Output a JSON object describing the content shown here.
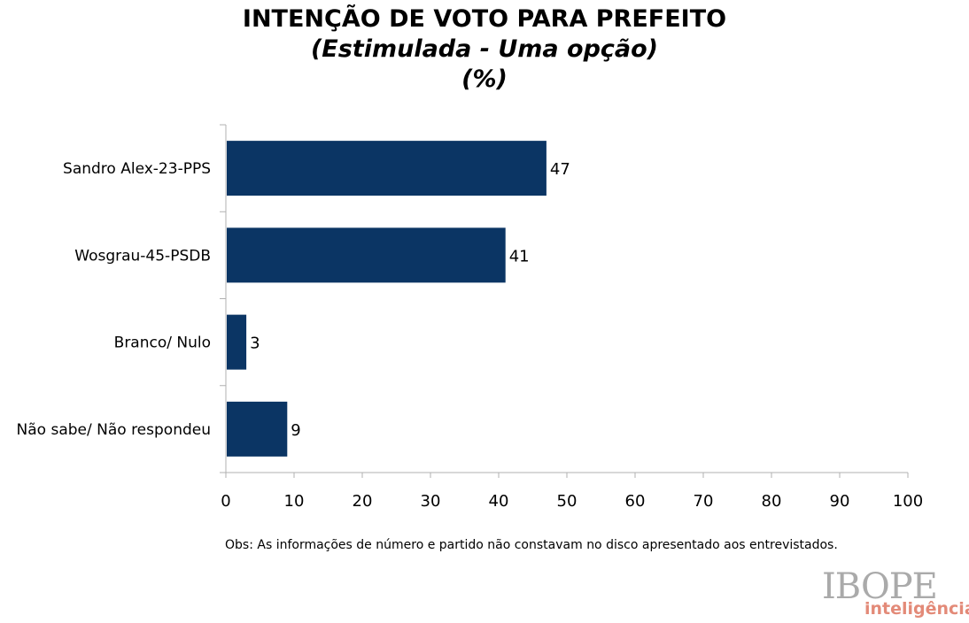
{
  "chart_data": {
    "type": "bar",
    "orientation": "horizontal",
    "title": "INTENÇÃO DE VOTO PARA PREFEITO",
    "subtitle": "(Estimulada - Uma opção)",
    "unit": "(%)",
    "categories": [
      "Sandro Alex-23-PPS",
      "Wosgrau-45-PSDB",
      "Branco/ Nulo",
      "Não sabe/ Não respondeu"
    ],
    "values": [
      47,
      41,
      3,
      9
    ],
    "xlim": [
      0,
      100
    ],
    "xticks": [
      0,
      10,
      20,
      30,
      40,
      50,
      60,
      70,
      80,
      90,
      100
    ],
    "grid": false,
    "bar_color": "#0b3564"
  },
  "note": "Obs: As informações de número e partido não constavam no disco apresentado aos entrevistados.",
  "logo": {
    "brand": "IBOPE",
    "tagline": "inteligência"
  }
}
